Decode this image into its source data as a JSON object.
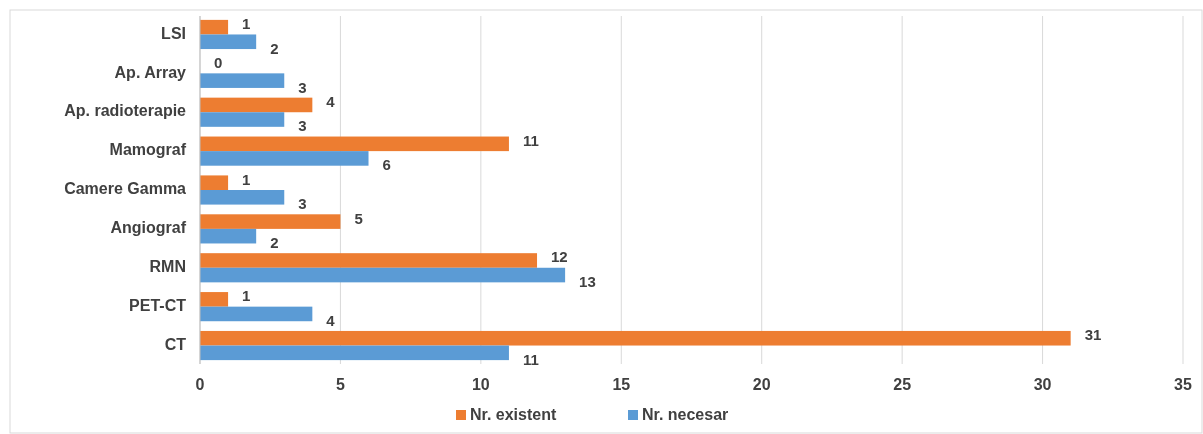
{
  "chart_data": {
    "type": "bar",
    "orientation": "horizontal",
    "categories": [
      "LSI",
      "Ap. Array",
      "Ap. radioterapie",
      "Mamograf",
      "Camere Gamma",
      "Angiograf",
      "RMN",
      "PET-CT",
      "CT"
    ],
    "series": [
      {
        "name": "Nr. existent",
        "color": "#ed7d31",
        "values": [
          1,
          0,
          4,
          11,
          1,
          5,
          12,
          1,
          31
        ]
      },
      {
        "name": "Nr. necesar",
        "color": "#5b9bd5",
        "values": [
          2,
          3,
          3,
          6,
          3,
          2,
          13,
          4,
          11
        ]
      }
    ],
    "xlim": [
      0,
      35
    ],
    "xticks": [
      0,
      5,
      10,
      15,
      20,
      25,
      30,
      35
    ],
    "grid": "x",
    "legend": "bottom",
    "data_labels": true
  }
}
